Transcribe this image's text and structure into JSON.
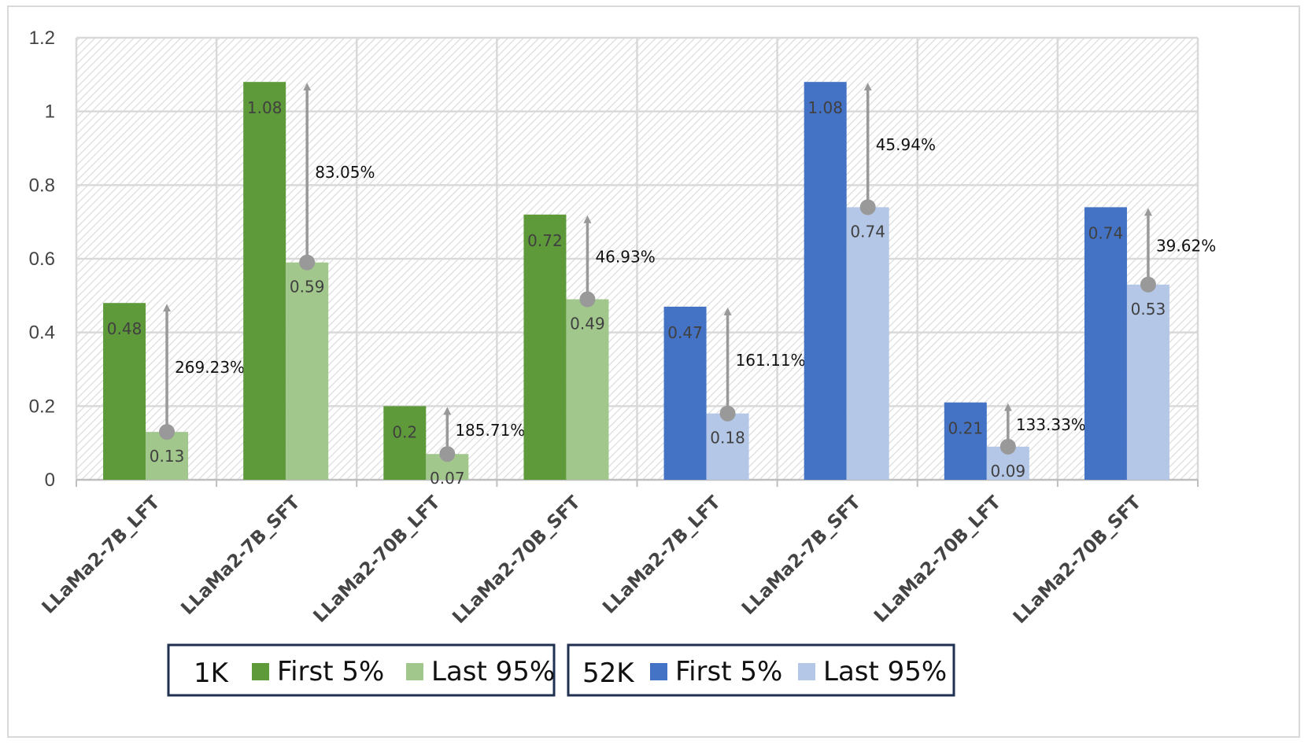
{
  "chart_data": {
    "type": "bar",
    "ylim": [
      0,
      1.2
    ],
    "yticks": [
      "0",
      "0.2",
      "0.4",
      "0.6",
      "0.8",
      "1",
      "1.2"
    ],
    "categories": [
      "LLaMa2-7B_LFT",
      "LLaMa2-7B_SFT",
      "LLaMa2-70B_LFT",
      "LLaMa2-70B_SFT",
      "LLaMa2-7B_LFT",
      "LLaMa2-7B_SFT",
      "LLaMa2-70B_LFT",
      "LLaMa2-70B_SFT"
    ],
    "groups": [
      {
        "name": "1K",
        "categories": [
          0,
          1,
          2,
          3
        ],
        "series": [
          {
            "name": "First 5%",
            "color": "#5e9a3a",
            "values": [
              0.48,
              1.08,
              0.2,
              0.72
            ],
            "labels": [
              "0.48",
              "1.08",
              "0.2",
              "0.72"
            ]
          },
          {
            "name": "Last 95%",
            "color": "#a2c78c",
            "values": [
              0.13,
              0.59,
              0.07,
              0.49
            ],
            "labels": [
              "0.13",
              "0.59",
              "0.07",
              "0.49"
            ]
          }
        ],
        "increase_labels": [
          "269.23%",
          "83.05%",
          "185.71%",
          "46.93%"
        ]
      },
      {
        "name": "52K",
        "categories": [
          4,
          5,
          6,
          7
        ],
        "series": [
          {
            "name": "First 5%",
            "color": "#4472c4",
            "values": [
              0.47,
              1.08,
              0.21,
              0.74
            ],
            "labels": [
              "0.47",
              "1.08",
              "0.21",
              "0.74"
            ]
          },
          {
            "name": "Last 95%",
            "color": "#b4c7e7",
            "values": [
              0.18,
              0.74,
              0.09,
              0.53
            ],
            "labels": [
              "0.18",
              "0.74",
              "0.09",
              "0.53"
            ]
          }
        ],
        "increase_labels": [
          "161.11%",
          "45.94%",
          "133.33%",
          "39.62%"
        ]
      }
    ],
    "legend": [
      {
        "group": "1K",
        "entries": [
          "First 5%",
          "Last 95%"
        ]
      },
      {
        "group": "52K",
        "entries": [
          "First 5%",
          "Last 95%"
        ]
      }
    ],
    "grid": true,
    "title": "",
    "xlabel": "",
    "ylabel": ""
  }
}
